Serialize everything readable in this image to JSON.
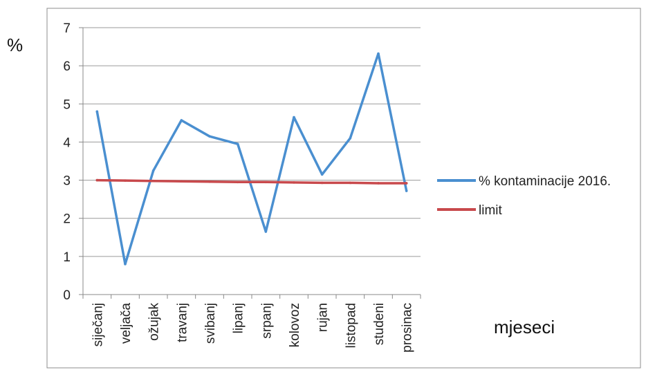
{
  "outer_labels": {
    "y_unit": "%",
    "x_caption": "mjeseci"
  },
  "chart_data": {
    "type": "line",
    "categories": [
      "siječanj",
      "veljača",
      "ožujak",
      "travanj",
      "svibanj",
      "lipanj",
      "srpanj",
      "kolovoz",
      "rujan",
      "listopad",
      "studeni",
      "prosinac"
    ],
    "series": [
      {
        "name": "% kontaminacije 2016.",
        "color": "#4a8fd0",
        "values": [
          4.8,
          0.8,
          3.25,
          4.57,
          4.15,
          3.95,
          1.65,
          4.65,
          3.15,
          4.1,
          6.32,
          2.72
        ]
      },
      {
        "name": "limit",
        "color": "#c8494c",
        "values": [
          3.0,
          2.99,
          2.98,
          2.97,
          2.96,
          2.95,
          2.95,
          2.94,
          2.93,
          2.93,
          2.92,
          2.92
        ]
      }
    ],
    "ylim": [
      0,
      7
    ],
    "yticks": [
      0,
      1,
      2,
      3,
      4,
      5,
      6,
      7
    ],
    "grid": true,
    "legend": "right"
  }
}
